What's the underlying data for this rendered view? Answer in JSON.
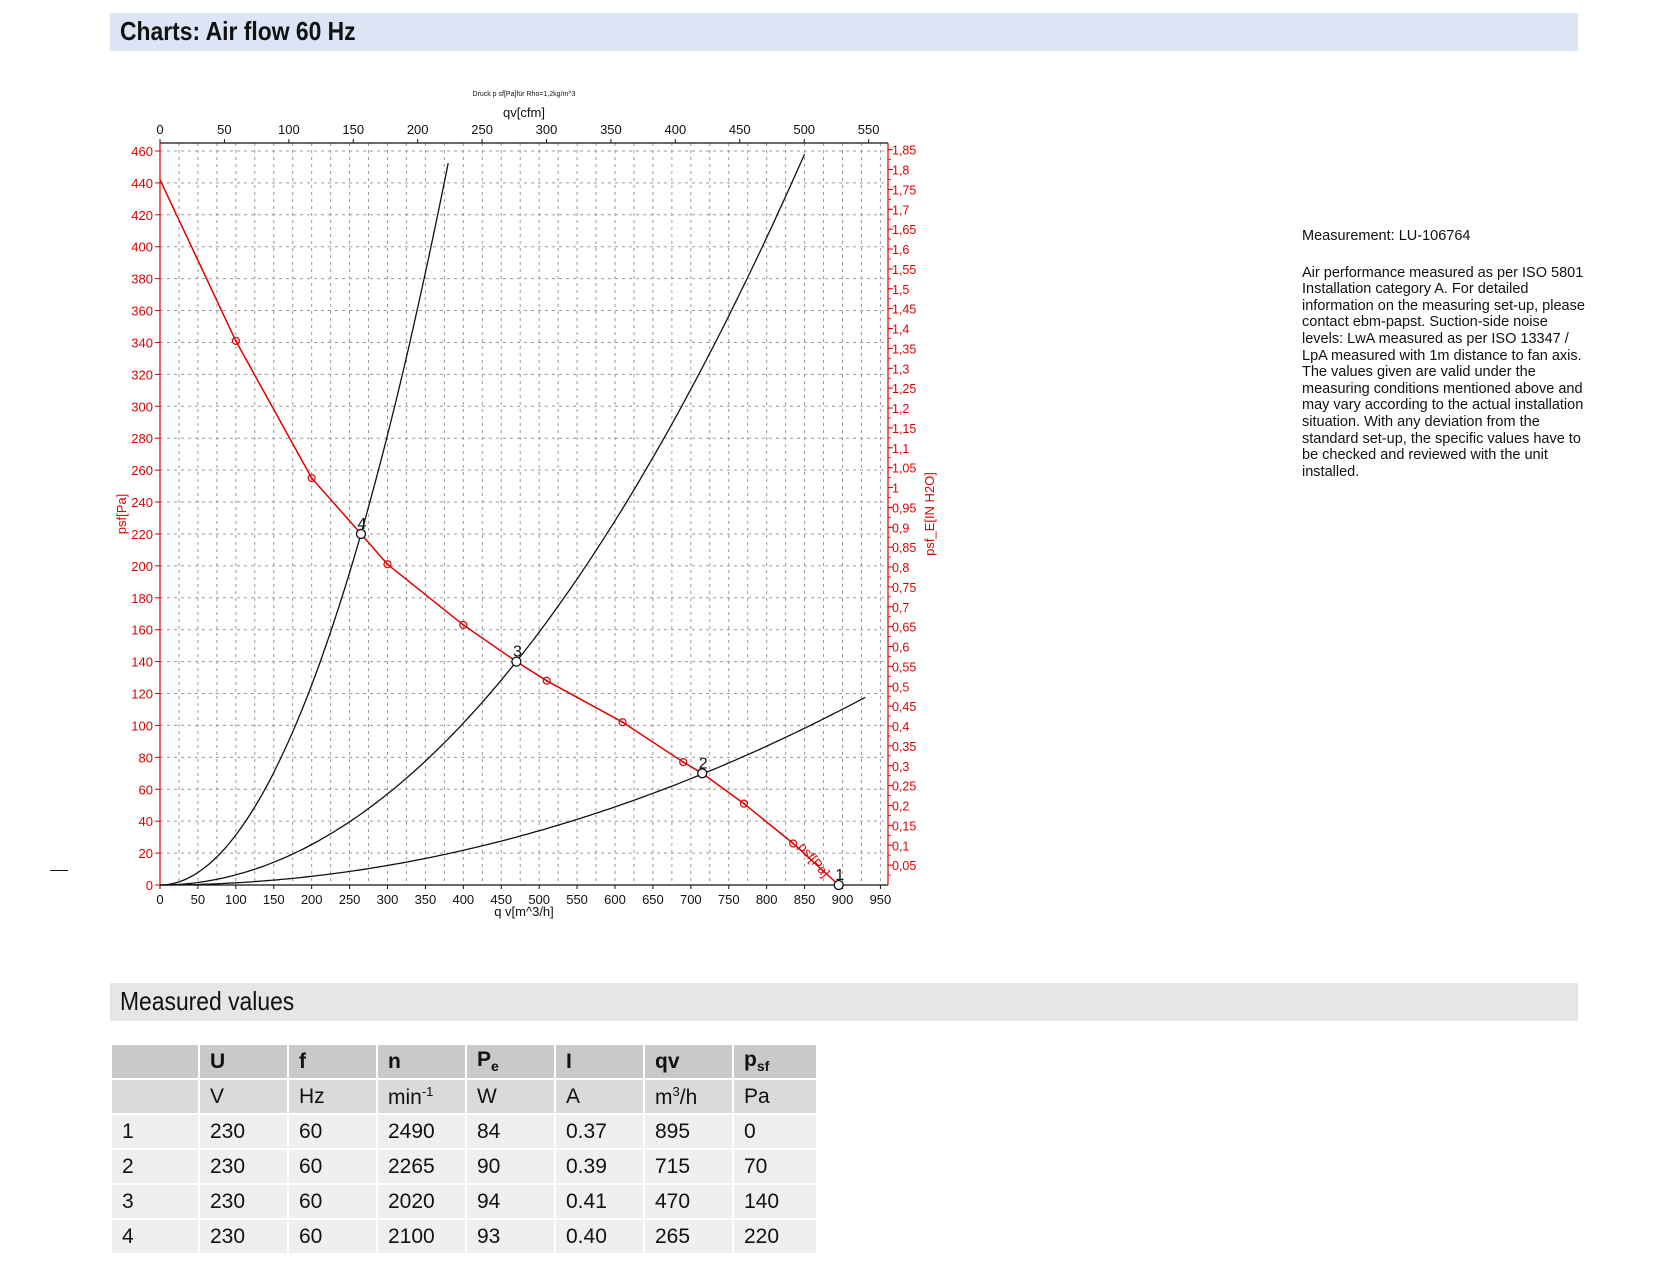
{
  "header": {
    "title": "Charts: Air flow 60 Hz"
  },
  "chart_data": {
    "type": "line",
    "caption": "Druck p sf[Pa]für Rho=1,2kg/m^3",
    "xlabel": "q v[m^3/h]",
    "x2label": "qv[cfm]",
    "ylabel": "psf[Pa]",
    "y2label": "psf_E[IN H2O]",
    "xlim": [
      0,
      960
    ],
    "ylim": [
      0,
      465
    ],
    "x_ticks": [
      0,
      50,
      100,
      150,
      200,
      250,
      300,
      350,
      400,
      450,
      500,
      550,
      600,
      650,
      700,
      750,
      800,
      850,
      900,
      950
    ],
    "x2_ticks": [
      "0",
      "50",
      "100",
      "150",
      "200",
      "250",
      "300",
      "350",
      "400",
      "450",
      "500",
      "550"
    ],
    "y_ticks": [
      0,
      20,
      40,
      60,
      80,
      100,
      120,
      140,
      160,
      180,
      200,
      220,
      240,
      260,
      280,
      300,
      320,
      340,
      360,
      380,
      400,
      420,
      440,
      460
    ],
    "y2_ticks": [
      "0,05",
      "0,1",
      "0,15",
      "0,2",
      "0,25",
      "0,3",
      "0,35",
      "0,4",
      "0,45",
      "0,5",
      "0,55",
      "0,6",
      "0,65",
      "0,7",
      "0,75",
      "0,8",
      "0,85",
      "0,9",
      "0,95",
      "1",
      "1,05",
      "1,1",
      "1,15",
      "1,2",
      "1,25",
      "1,3",
      "1,35",
      "1,4",
      "1,45",
      "1,5",
      "1,55",
      "1,6",
      "1,65",
      "1,7",
      "1,75",
      "1,8",
      "1,85"
    ],
    "grid": true,
    "series": [
      {
        "name": "psf[Pa]",
        "color": "#e00000",
        "x": [
          0,
          100,
          200,
          265,
          300,
          400,
          470,
          510,
          610,
          690,
          715,
          770,
          835,
          895
        ],
        "y": [
          442,
          341,
          255,
          220,
          201,
          163,
          140,
          128,
          102,
          77,
          70,
          51,
          26,
          0
        ]
      }
    ],
    "markers": {
      "x": [
        100,
        200,
        300,
        400,
        510,
        610,
        690,
        770,
        835
      ],
      "y": [
        341,
        255,
        201,
        163,
        128,
        102,
        77,
        51,
        26
      ]
    },
    "system_curves": [
      {
        "k": 0.003133,
        "xmax": 380
      },
      {
        "k": 0.000634,
        "xmax": 850
      },
      {
        "k": 0.000136,
        "xmax": 930
      }
    ],
    "operating_points": [
      {
        "label": "1",
        "x": 895,
        "y": 0
      },
      {
        "label": "2",
        "x": 715,
        "y": 70
      },
      {
        "label": "3",
        "x": 470,
        "y": 140
      },
      {
        "label": "4",
        "x": 265,
        "y": 220
      }
    ]
  },
  "notes": {
    "measurement": "Measurement: LU-106764",
    "description": "Air performance measured as per ISO 5801 Installation category A. For detailed information on the measuring set-up, please contact ebm-papst. Suction-side noise levels: LwA measured as per ISO 13347 / LpA measured with 1m distance to fan axis. The values given are valid under the measuring conditions mentioned above and may vary according to the actual installation situation. With any deviation from the standard set-up, the specific values have to be checked and reviewed with the unit installed."
  },
  "measured": {
    "title": "Measured values",
    "headers": [
      "",
      "U",
      "f",
      "n",
      "Pe",
      "I",
      "qv",
      "psf"
    ],
    "units": [
      "",
      "V",
      "Hz",
      "min-1",
      "W",
      "A",
      "m3/h",
      "Pa"
    ],
    "rows": [
      [
        "1",
        "230",
        "60",
        "2490",
        "84",
        "0.37",
        "895",
        "0"
      ],
      [
        "2",
        "230",
        "60",
        "2265",
        "90",
        "0.39",
        "715",
        "70"
      ],
      [
        "3",
        "230",
        "60",
        "2020",
        "94",
        "0.41",
        "470",
        "140"
      ],
      [
        "4",
        "230",
        "60",
        "2100",
        "93",
        "0.40",
        "265",
        "220"
      ]
    ]
  }
}
